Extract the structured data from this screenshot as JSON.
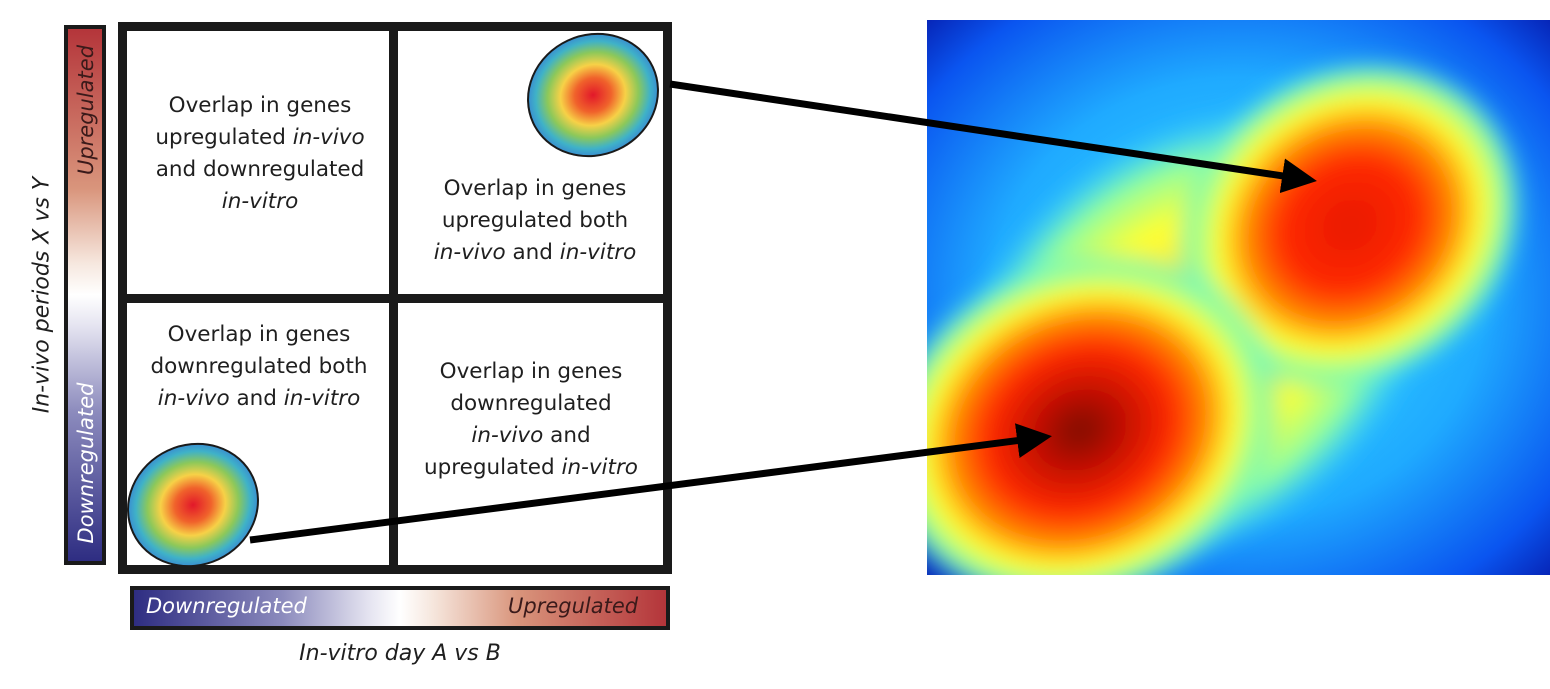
{
  "quadrants": {
    "top_left": {
      "l1": "Overlap in genes",
      "l2a": "upregulated ",
      "l2b": "in-vivo",
      "l3": "and downregulated",
      "l4": "in-vitro"
    },
    "top_right": {
      "l1": "Overlap in genes",
      "l2": "upregulated both",
      "l3a": "in-vivo",
      "l3b": " and ",
      "l3c": "in-vitro"
    },
    "bottom_left": {
      "l1": "Overlap in genes",
      "l2": "downregulated both",
      "l3a": "in-vivo",
      "l3b": " and ",
      "l3c": "in-vitro"
    },
    "bottom_right": {
      "l1": "Overlap in genes",
      "l2": "downregulated",
      "l3a": "in-vivo",
      "l3b": " and",
      "l4a": "upregulated ",
      "l4b": "in-vitro"
    }
  },
  "vertical_scale": {
    "top_label": "Upregulated",
    "bottom_label": "Downregulated",
    "title": "In-vivo periods X vs Y"
  },
  "horizontal_scale": {
    "left_label": "Downregulated",
    "right_label": "Upregulated",
    "title": "In-vitro day A vs B"
  },
  "colors": {
    "up": "#b4353a",
    "down": "#2e2d82",
    "frame": "#1a1a1a",
    "heat_low": "#0a2fd6",
    "heat_mid": "#ffff30",
    "heat_high": "#ff2a00",
    "heat_peak": "#7a0a00"
  }
}
